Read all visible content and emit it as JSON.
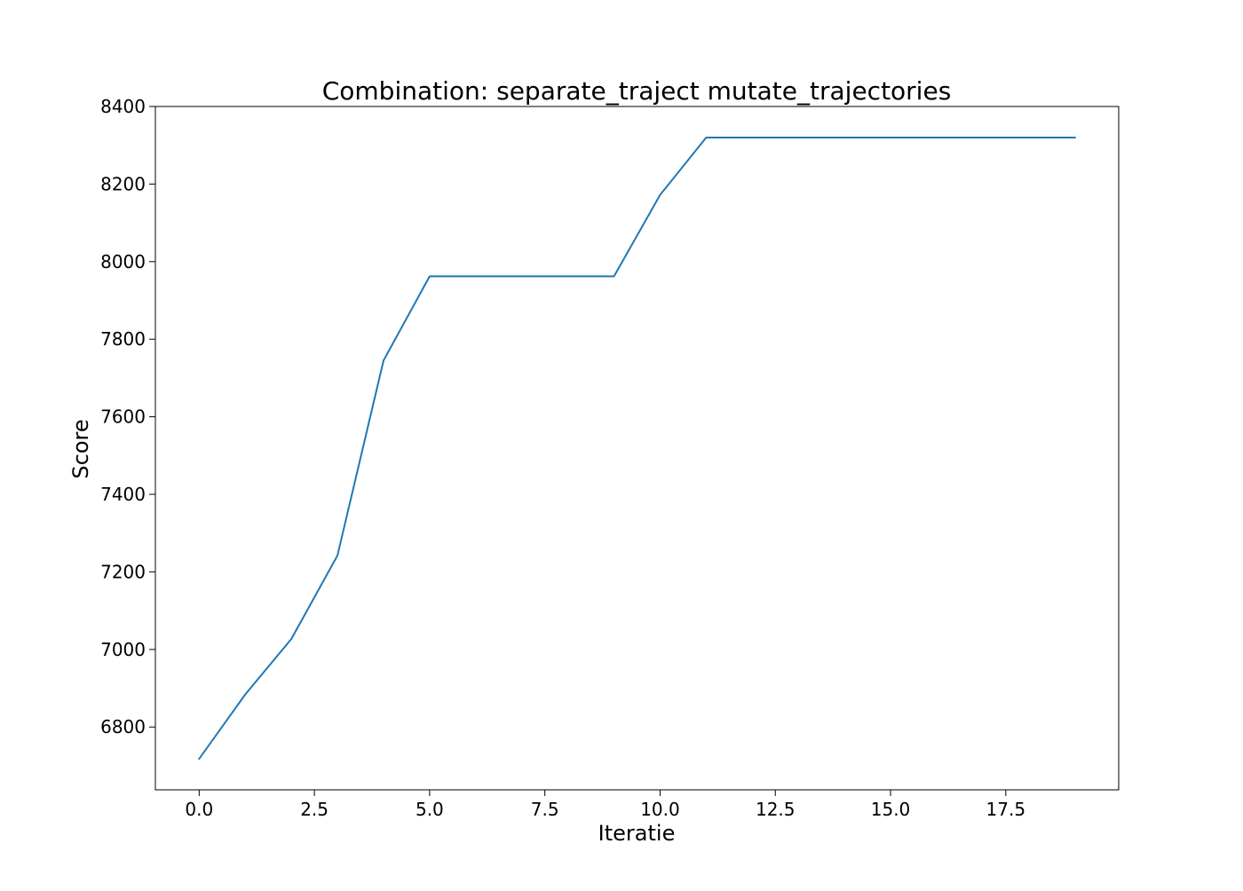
{
  "chart_data": {
    "type": "line",
    "title": "Combination: separate_traject mutate_trajectories",
    "xlabel": "Iteratie",
    "ylabel": "Score",
    "xlim": [
      -0.95,
      19.95
    ],
    "ylim": [
      6638,
      8400
    ],
    "xticks": [
      0.0,
      2.5,
      5.0,
      7.5,
      10.0,
      12.5,
      15.0,
      17.5
    ],
    "xtick_labels": [
      "0.0",
      "2.5",
      "5.0",
      "7.5",
      "10.0",
      "12.5",
      "15.0",
      "17.5"
    ],
    "yticks": [
      6800,
      7000,
      7200,
      7400,
      7600,
      7800,
      8000,
      8200,
      8400
    ],
    "ytick_labels": [
      "6800",
      "7000",
      "7200",
      "7400",
      "7600",
      "7800",
      "8000",
      "8200",
      "8400"
    ],
    "grid": false,
    "legend": null,
    "series": [
      {
        "color": "#1f77b4",
        "x": [
          0,
          1,
          2,
          3,
          4,
          5,
          6,
          7,
          8,
          9,
          10,
          11,
          12,
          13,
          14,
          15,
          16,
          17,
          18,
          19
        ],
        "y": [
          6718,
          6884,
          7027,
          7242,
          7745,
          7962,
          7962,
          7962,
          7962,
          7962,
          8172,
          8320,
          8320,
          8320,
          8320,
          8320,
          8320,
          8320,
          8320,
          8320
        ]
      }
    ]
  }
}
